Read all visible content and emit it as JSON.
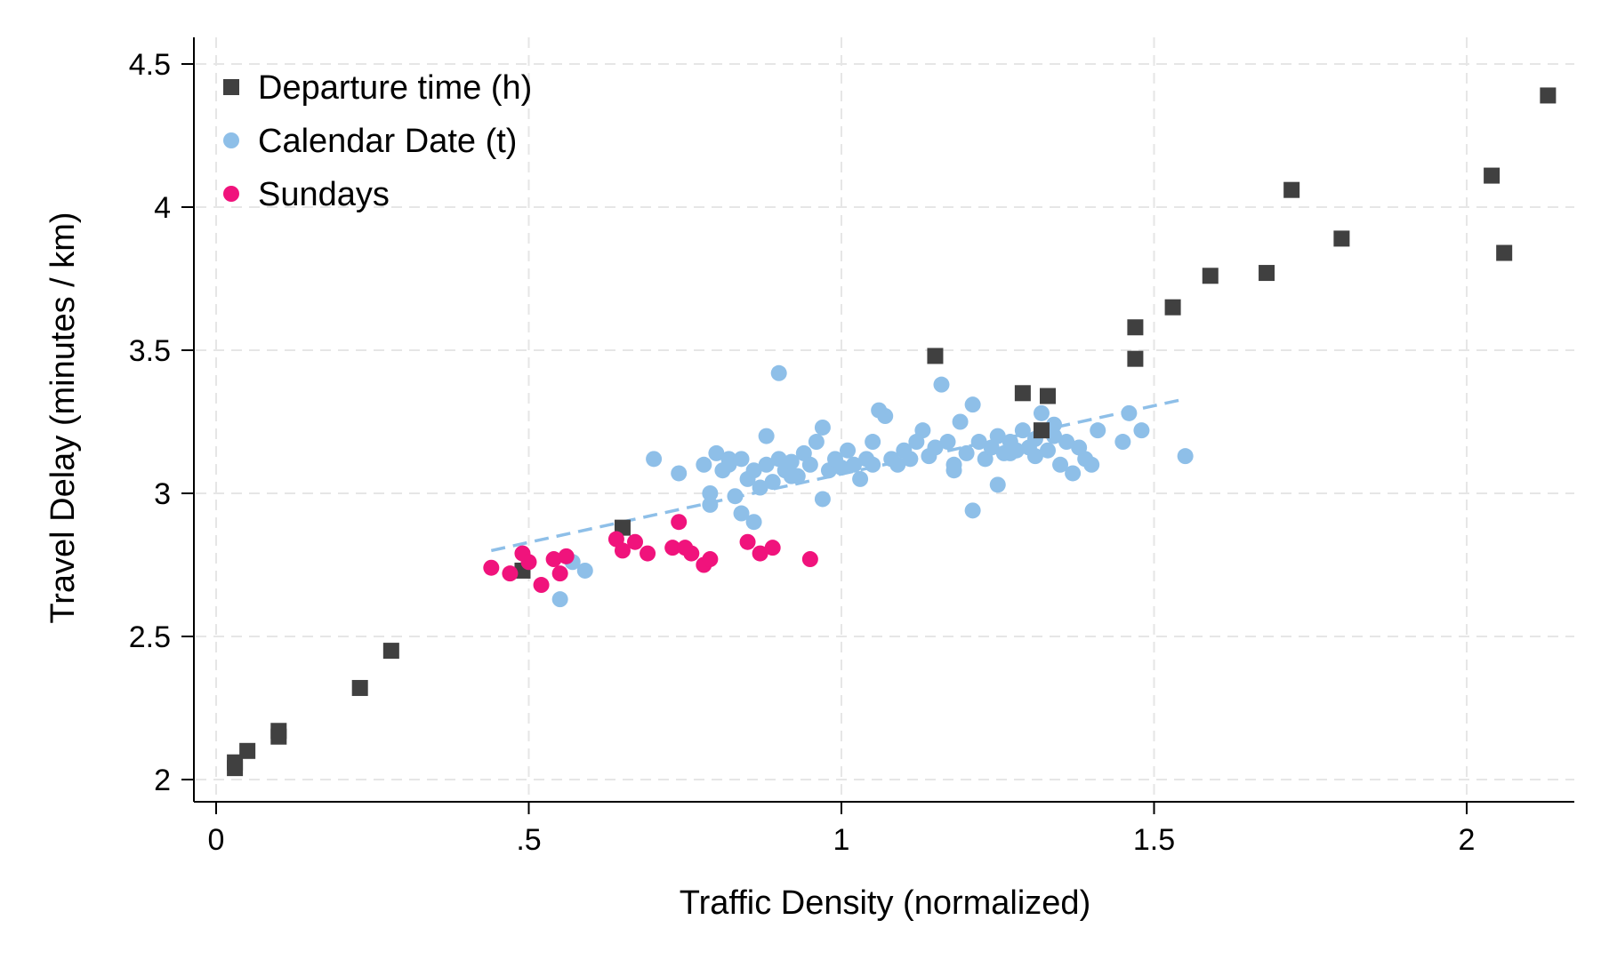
{
  "chart_data": {
    "type": "scatter",
    "title": "",
    "xlabel": "Traffic Density (normalized)",
    "ylabel": "Travel Delay (minutes / km)",
    "xlim": [
      -0.04,
      2.18
    ],
    "ylim": [
      1.92,
      4.62
    ],
    "x_ticks": [
      {
        "value": 0,
        "label": "0"
      },
      {
        "value": 0.5,
        "label": ".5"
      },
      {
        "value": 1,
        "label": "1"
      },
      {
        "value": 1.5,
        "label": "1.5"
      },
      {
        "value": 2,
        "label": "2"
      }
    ],
    "y_ticks": [
      {
        "value": 2,
        "label": "2"
      },
      {
        "value": 2.5,
        "label": "2.5"
      },
      {
        "value": 3,
        "label": "3"
      },
      {
        "value": 3.5,
        "label": "3.5"
      },
      {
        "value": 4,
        "label": "4"
      },
      {
        "value": 4.5,
        "label": "4.5"
      }
    ],
    "grid": true,
    "legend_position": "top-left",
    "series": [
      {
        "name": "Departure time (h)",
        "marker": "square",
        "color": "#404040",
        "points": [
          [
            0.03,
            2.04
          ],
          [
            0.03,
            2.06
          ],
          [
            0.05,
            2.1
          ],
          [
            0.1,
            2.17
          ],
          [
            0.1,
            2.15
          ],
          [
            0.23,
            2.32
          ],
          [
            0.28,
            2.45
          ],
          [
            0.49,
            2.73
          ],
          [
            0.65,
            2.88
          ],
          [
            1.15,
            3.48
          ],
          [
            1.29,
            3.35
          ],
          [
            1.32,
            3.22
          ],
          [
            1.33,
            3.34
          ],
          [
            1.47,
            3.58
          ],
          [
            1.47,
            3.47
          ],
          [
            1.53,
            3.65
          ],
          [
            1.59,
            3.76
          ],
          [
            1.68,
            3.77
          ],
          [
            1.72,
            4.06
          ],
          [
            1.8,
            3.89
          ],
          [
            2.04,
            4.11
          ],
          [
            2.06,
            3.84
          ],
          [
            2.13,
            4.39
          ]
        ]
      },
      {
        "name": "Calendar Date (t)",
        "marker": "circle",
        "color": "#8ebfe8",
        "points": [
          [
            0.55,
            2.63
          ],
          [
            0.57,
            2.76
          ],
          [
            0.59,
            2.73
          ],
          [
            0.7,
            3.12
          ],
          [
            0.74,
            3.07
          ],
          [
            0.78,
            3.1
          ],
          [
            0.79,
            3.0
          ],
          [
            0.79,
            2.96
          ],
          [
            0.8,
            3.14
          ],
          [
            0.81,
            3.08
          ],
          [
            0.82,
            3.12
          ],
          [
            0.83,
            2.99
          ],
          [
            0.84,
            2.93
          ],
          [
            0.85,
            3.05
          ],
          [
            0.86,
            3.08
          ],
          [
            0.87,
            3.02
          ],
          [
            0.88,
            3.1
          ],
          [
            0.88,
            3.2
          ],
          [
            0.89,
            3.04
          ],
          [
            0.9,
            3.12
          ],
          [
            0.91,
            3.08
          ],
          [
            0.92,
            3.11
          ],
          [
            0.93,
            3.06
          ],
          [
            0.94,
            3.14
          ],
          [
            0.95,
            3.1
          ],
          [
            0.96,
            3.18
          ],
          [
            0.97,
            3.23
          ],
          [
            0.98,
            3.08
          ],
          [
            0.99,
            3.12
          ],
          [
            1.0,
            3.09
          ],
          [
            1.01,
            3.15
          ],
          [
            1.02,
            3.1
          ],
          [
            1.03,
            3.05
          ],
          [
            1.04,
            3.12
          ],
          [
            1.05,
            3.18
          ],
          [
            1.06,
            3.29
          ],
          [
            1.07,
            3.27
          ],
          [
            1.08,
            3.12
          ],
          [
            1.09,
            3.1
          ],
          [
            1.1,
            3.15
          ],
          [
            1.11,
            3.12
          ],
          [
            1.12,
            3.18
          ],
          [
            1.13,
            3.22
          ],
          [
            1.14,
            3.13
          ],
          [
            1.15,
            3.16
          ],
          [
            1.16,
            3.38
          ],
          [
            1.17,
            3.18
          ],
          [
            1.18,
            3.1
          ],
          [
            1.19,
            3.25
          ],
          [
            1.2,
            3.14
          ],
          [
            1.21,
            3.31
          ],
          [
            1.22,
            3.18
          ],
          [
            1.23,
            3.12
          ],
          [
            1.24,
            3.16
          ],
          [
            1.25,
            3.2
          ],
          [
            1.26,
            3.14
          ],
          [
            1.27,
            3.18
          ],
          [
            1.28,
            3.15
          ],
          [
            1.29,
            3.22
          ],
          [
            1.3,
            3.16
          ],
          [
            1.31,
            3.19
          ],
          [
            1.32,
            3.28
          ],
          [
            1.33,
            3.15
          ],
          [
            1.34,
            3.2
          ],
          [
            1.35,
            3.1
          ],
          [
            1.36,
            3.18
          ],
          [
            1.37,
            3.07
          ],
          [
            1.38,
            3.16
          ],
          [
            1.39,
            3.12
          ],
          [
            1.4,
            3.1
          ],
          [
            1.41,
            3.22
          ],
          [
            1.45,
            3.18
          ],
          [
            1.46,
            3.28
          ],
          [
            1.48,
            3.22
          ],
          [
            1.55,
            3.13
          ],
          [
            0.9,
            3.42
          ],
          [
            0.97,
            2.98
          ],
          [
            1.21,
            2.94
          ],
          [
            1.25,
            3.03
          ],
          [
            0.86,
            2.9
          ],
          [
            0.82,
            3.1
          ],
          [
            0.84,
            3.12
          ],
          [
            1.18,
            3.08
          ],
          [
            1.27,
            3.14
          ],
          [
            1.31,
            3.13
          ],
          [
            1.34,
            3.24
          ],
          [
            1.05,
            3.1
          ],
          [
            0.92,
            3.06
          ]
        ]
      },
      {
        "name": "Sundays",
        "marker": "circle",
        "color": "#f0137c",
        "points": [
          [
            0.44,
            2.74
          ],
          [
            0.47,
            2.72
          ],
          [
            0.49,
            2.79
          ],
          [
            0.5,
            2.76
          ],
          [
            0.52,
            2.68
          ],
          [
            0.54,
            2.77
          ],
          [
            0.55,
            2.72
          ],
          [
            0.56,
            2.78
          ],
          [
            0.64,
            2.84
          ],
          [
            0.65,
            2.8
          ],
          [
            0.67,
            2.83
          ],
          [
            0.69,
            2.79
          ],
          [
            0.73,
            2.81
          ],
          [
            0.74,
            2.9
          ],
          [
            0.75,
            2.81
          ],
          [
            0.76,
            2.79
          ],
          [
            0.78,
            2.75
          ],
          [
            0.79,
            2.77
          ],
          [
            0.85,
            2.83
          ],
          [
            0.87,
            2.79
          ],
          [
            0.89,
            2.81
          ],
          [
            0.95,
            2.77
          ]
        ]
      }
    ],
    "trend_line": {
      "color": "#8ebfe8",
      "style": "dashed",
      "from": [
        0.44,
        2.8
      ],
      "to": [
        1.55,
        3.33
      ]
    }
  }
}
